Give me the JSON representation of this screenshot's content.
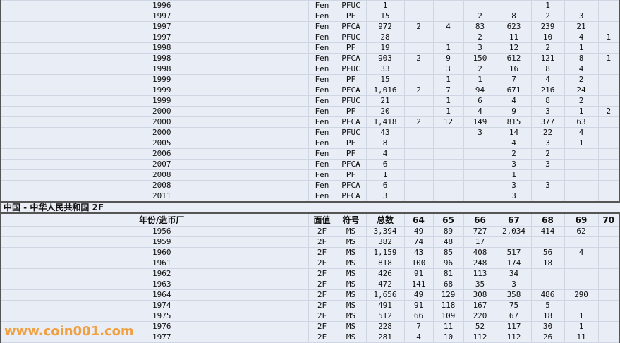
{
  "section1": {
    "rows": [
      [
        "1996",
        "Fen",
        "PFUC",
        "1",
        "",
        "",
        "",
        "",
        "1",
        "",
        ""
      ],
      [
        "1997",
        "Fen",
        "PF",
        "15",
        "",
        "",
        "2",
        "8",
        "2",
        "3",
        ""
      ],
      [
        "1997",
        "Fen",
        "PFCA",
        "972",
        "2",
        "4",
        "83",
        "623",
        "239",
        "21",
        ""
      ],
      [
        "1997",
        "Fen",
        "PFUC",
        "28",
        "",
        "",
        "2",
        "11",
        "10",
        "4",
        "1"
      ],
      [
        "1998",
        "Fen",
        "PF",
        "19",
        "",
        "1",
        "3",
        "12",
        "2",
        "1",
        ""
      ],
      [
        "1998",
        "Fen",
        "PFCA",
        "903",
        "2",
        "9",
        "150",
        "612",
        "121",
        "8",
        "1"
      ],
      [
        "1998",
        "Fen",
        "PFUC",
        "33",
        "",
        "3",
        "2",
        "16",
        "8",
        "4",
        ""
      ],
      [
        "1999",
        "Fen",
        "PF",
        "15",
        "",
        "1",
        "1",
        "7",
        "4",
        "2",
        ""
      ],
      [
        "1999",
        "Fen",
        "PFCA",
        "1,016",
        "2",
        "7",
        "94",
        "671",
        "216",
        "24",
        ""
      ],
      [
        "1999",
        "Fen",
        "PFUC",
        "21",
        "",
        "1",
        "6",
        "4",
        "8",
        "2",
        ""
      ],
      [
        "2000",
        "Fen",
        "PF",
        "20",
        "",
        "1",
        "4",
        "9",
        "3",
        "1",
        "2"
      ],
      [
        "2000",
        "Fen",
        "PFCA",
        "1,418",
        "2",
        "12",
        "149",
        "815",
        "377",
        "63",
        ""
      ],
      [
        "2000",
        "Fen",
        "PFUC",
        "43",
        "",
        "",
        "3",
        "14",
        "22",
        "4",
        ""
      ],
      [
        "2005",
        "Fen",
        "PF",
        "8",
        "",
        "",
        "",
        "4",
        "3",
        "1",
        ""
      ],
      [
        "2006",
        "Fen",
        "PF",
        "4",
        "",
        "",
        "",
        "2",
        "2",
        "",
        ""
      ],
      [
        "2007",
        "Fen",
        "PFCA",
        "6",
        "",
        "",
        "",
        "3",
        "3",
        "",
        ""
      ],
      [
        "2008",
        "Fen",
        "PF",
        "1",
        "",
        "",
        "",
        "1",
        "",
        "",
        ""
      ],
      [
        "2008",
        "Fen",
        "PFCA",
        "6",
        "",
        "",
        "",
        "3",
        "3",
        "",
        ""
      ],
      [
        "2011",
        "Fen",
        "PFCA",
        "3",
        "",
        "",
        "",
        "3",
        "",
        "",
        ""
      ]
    ]
  },
  "section2": {
    "title": "中国 - 中华人民共和国 2F",
    "headers": [
      "年份/造币厂",
      "面值",
      "符号",
      "总数",
      "64",
      "65",
      "66",
      "67",
      "68",
      "69",
      "70"
    ],
    "rows": [
      [
        "1956",
        "2F",
        "MS",
        "3,394",
        "49",
        "89",
        "727",
        "2,034",
        "414",
        "62",
        ""
      ],
      [
        "1959",
        "2F",
        "MS",
        "382",
        "74",
        "48",
        "17",
        "",
        "",
        "",
        ""
      ],
      [
        "1960",
        "2F",
        "MS",
        "1,159",
        "43",
        "85",
        "408",
        "517",
        "56",
        "4",
        ""
      ],
      [
        "1961",
        "2F",
        "MS",
        "818",
        "100",
        "96",
        "248",
        "174",
        "18",
        "",
        ""
      ],
      [
        "1962",
        "2F",
        "MS",
        "426",
        "91",
        "81",
        "113",
        "34",
        "",
        "",
        ""
      ],
      [
        "1963",
        "2F",
        "MS",
        "472",
        "141",
        "68",
        "35",
        "3",
        "",
        "",
        ""
      ],
      [
        "1964",
        "2F",
        "MS",
        "1,656",
        "49",
        "129",
        "308",
        "358",
        "486",
        "290",
        ""
      ],
      [
        "1974",
        "2F",
        "MS",
        "491",
        "91",
        "118",
        "167",
        "75",
        "5",
        "",
        ""
      ],
      [
        "1975",
        "2F",
        "MS",
        "512",
        "66",
        "109",
        "220",
        "67",
        "18",
        "1",
        ""
      ],
      [
        "1976",
        "2F",
        "MS",
        "228",
        "7",
        "11",
        "52",
        "117",
        "30",
        "1",
        ""
      ],
      [
        "1977",
        "2F",
        "MS",
        "281",
        "4",
        "10",
        "112",
        "112",
        "26",
        "11",
        ""
      ]
    ]
  },
  "watermark": "www.coin001.com",
  "colors": {
    "background": "#e9edf5",
    "grid": "#cfd5e2",
    "watermark": "#f0a040"
  }
}
